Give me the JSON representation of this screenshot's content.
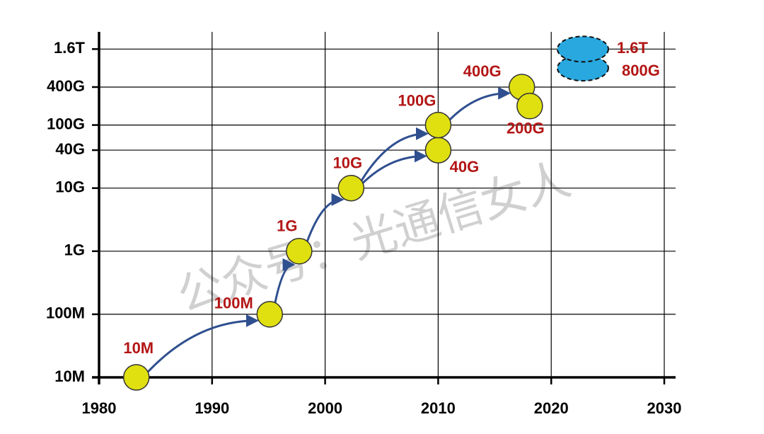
{
  "chart_data": {
    "type": "scatter",
    "watermark": "公众号：光通信女人",
    "x": [
      1983.3,
      1995.1,
      1997.7,
      2002.3,
      2010,
      2010,
      2017.4,
      2018.1,
      2022.8,
      2022.8
    ],
    "values": [
      10000000,
      100000000,
      1000000000,
      10000000000,
      40000000000,
      100000000000,
      400000000000,
      200000000000,
      800000000000,
      1600000000000
    ],
    "value_labels": [
      "10M",
      "100M",
      "1G",
      "10G",
      "40G",
      "100G",
      "400G",
      "200G",
      "800G",
      "1.6T"
    ],
    "marker_colors": [
      "#e0e010",
      "#e0e010",
      "#e0e010",
      "#e0e010",
      "#e0e010",
      "#e0e010",
      "#e0e010",
      "#e0e010",
      "#29a8e0",
      "#29a8e0"
    ],
    "xlim": [
      1980,
      2031
    ],
    "xticks": [
      1980,
      1990,
      2000,
      2010,
      2020,
      2030
    ],
    "ylim": [
      10000000,
      3000000000000
    ],
    "log_y": true,
    "yticks": [
      {
        "value": 10000000,
        "label": "10M"
      },
      {
        "value": 100000000,
        "label": "100M"
      },
      {
        "value": 1000000000,
        "label": "1G"
      },
      {
        "value": 10000000000,
        "label": "10G"
      },
      {
        "value": 40000000000,
        "label": "40G"
      },
      {
        "value": 100000000000,
        "label": "100G"
      },
      {
        "value": 400000000000,
        "label": "400G"
      },
      {
        "value": 1600000000000,
        "label": "1.6T"
      }
    ],
    "grid": true
  }
}
